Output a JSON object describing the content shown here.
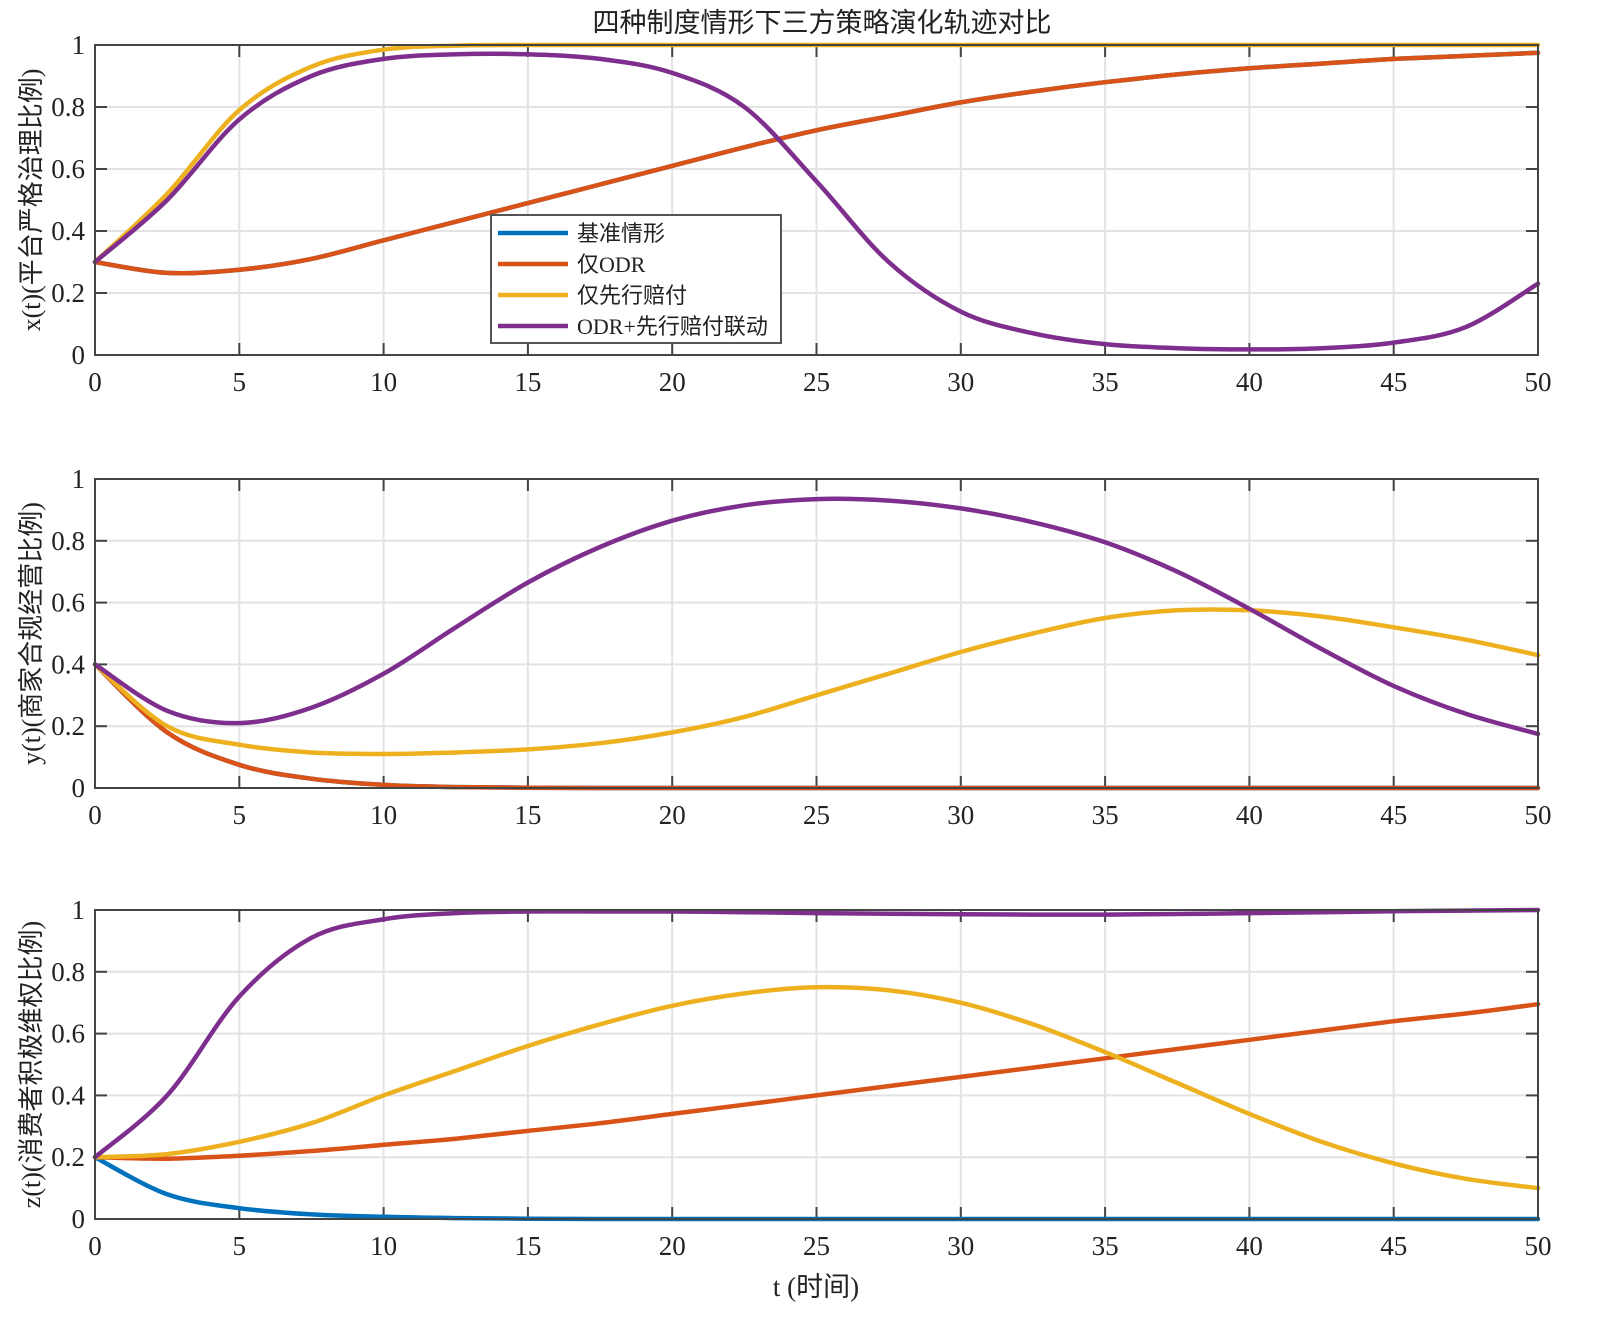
{
  "chart_data": {
    "type": "line",
    "title": "四种制度情形下三方策略演化轨迹对比",
    "xlabel": "t (时间)",
    "x": [
      0,
      2.5,
      5,
      7.5,
      10,
      12.5,
      15,
      17.5,
      20,
      22.5,
      25,
      27.5,
      30,
      32.5,
      35,
      37.5,
      40,
      42.5,
      45,
      47.5,
      50
    ],
    "xlim": [
      0,
      50
    ],
    "xticks": [
      0,
      5,
      10,
      15,
      20,
      25,
      30,
      35,
      40,
      45,
      50
    ],
    "yticks": [
      0,
      0.2,
      0.4,
      0.6,
      0.8,
      1
    ],
    "ytick_labels": [
      "0",
      "0.2",
      "0.4",
      "0.6",
      "0.8",
      "1"
    ],
    "grid": true,
    "legend": {
      "placement": "center-left of top panel",
      "entries": [
        "基准情形",
        "仅ODR",
        "仅先行赔付",
        "ODR+先行赔付联动"
      ]
    },
    "colors": [
      "#0072BD",
      "#D95319",
      "#EDB120",
      "#7E2F8E"
    ],
    "panels": [
      {
        "ylabel": "x(t)(平台严格治理比例)",
        "ylim": [
          0,
          1
        ],
        "series": [
          {
            "name": "基准情形",
            "values": [
              0.3,
              0.265,
              0.275,
              0.31,
              0.37,
              0.43,
              0.49,
              0.55,
              0.61,
              0.67,
              0.725,
              0.77,
              0.815,
              0.85,
              0.88,
              0.905,
              0.925,
              0.94,
              0.955,
              0.965,
              0.975
            ]
          },
          {
            "name": "仅ODR",
            "values": [
              0.3,
              0.265,
              0.275,
              0.31,
              0.37,
              0.43,
              0.49,
              0.55,
              0.61,
              0.67,
              0.725,
              0.77,
              0.815,
              0.85,
              0.88,
              0.905,
              0.925,
              0.94,
              0.955,
              0.965,
              0.975
            ]
          },
          {
            "name": "仅先行赔付",
            "values": [
              0.3,
              0.52,
              0.79,
              0.93,
              0.985,
              0.998,
              1,
              1,
              1,
              1,
              1,
              1,
              1,
              1,
              1,
              1,
              1,
              1,
              1,
              1,
              1
            ]
          },
          {
            "name": "ODR+先行赔付联动",
            "values": [
              0.3,
              0.5,
              0.76,
              0.9,
              0.955,
              0.97,
              0.97,
              0.955,
              0.91,
              0.8,
              0.56,
              0.3,
              0.14,
              0.07,
              0.035,
              0.022,
              0.018,
              0.022,
              0.04,
              0.09,
              0.23
            ]
          }
        ]
      },
      {
        "ylabel": "y(t)(商家合规经营比例)",
        "ylim": [
          0,
          1
        ],
        "series": [
          {
            "name": "基准情形",
            "values": [
              0.4,
              0.18,
              0.075,
              0.03,
              0.01,
              0.003,
              0.001,
              0,
              0,
              0,
              0,
              0,
              0,
              0,
              0,
              0,
              0,
              0,
              0,
              0,
              0
            ]
          },
          {
            "name": "仅ODR",
            "values": [
              0.4,
              0.18,
              0.075,
              0.03,
              0.01,
              0.003,
              0.001,
              0,
              0,
              0,
              0,
              0,
              0,
              0,
              0,
              0,
              0,
              0,
              0,
              0,
              0
            ]
          },
          {
            "name": "仅先行赔付",
            "values": [
              0.4,
              0.2,
              0.14,
              0.115,
              0.11,
              0.115,
              0.125,
              0.145,
              0.18,
              0.23,
              0.3,
              0.37,
              0.44,
              0.5,
              0.55,
              0.575,
              0.575,
              0.555,
              0.52,
              0.48,
              0.43
            ]
          },
          {
            "name": "ODR+先行赔付联动",
            "values": [
              0.4,
              0.25,
              0.21,
              0.26,
              0.37,
              0.52,
              0.665,
              0.78,
              0.865,
              0.915,
              0.935,
              0.93,
              0.905,
              0.86,
              0.795,
              0.7,
              0.58,
              0.45,
              0.33,
              0.24,
              0.175
            ]
          }
        ]
      },
      {
        "ylabel": "z(t)(消费者积极维权比例)",
        "ylim": [
          0,
          1
        ],
        "series": [
          {
            "name": "基准情形",
            "values": [
              0.2,
              0.08,
              0.035,
              0.015,
              0.007,
              0.003,
              0.001,
              0,
              0,
              0,
              0,
              0,
              0,
              0,
              0,
              0,
              0,
              0,
              0,
              0,
              0
            ]
          },
          {
            "name": "仅ODR",
            "values": [
              0.2,
              0.195,
              0.205,
              0.22,
              0.24,
              0.26,
              0.285,
              0.31,
              0.34,
              0.37,
              0.4,
              0.43,
              0.46,
              0.49,
              0.52,
              0.55,
              0.58,
              0.61,
              0.64,
              0.665,
              0.695
            ]
          },
          {
            "name": "仅先行赔付",
            "values": [
              0.2,
              0.21,
              0.25,
              0.31,
              0.4,
              0.48,
              0.56,
              0.63,
              0.69,
              0.73,
              0.75,
              0.74,
              0.7,
              0.63,
              0.54,
              0.44,
              0.34,
              0.25,
              0.18,
              0.13,
              0.1
            ]
          },
          {
            "name": "ODR+先行赔付联动",
            "values": [
              0.2,
              0.4,
              0.72,
              0.91,
              0.97,
              0.99,
              0.995,
              0.995,
              0.995,
              0.993,
              0.99,
              0.988,
              0.986,
              0.985,
              0.985,
              0.987,
              0.99,
              0.993,
              0.996,
              0.998,
              1.0
            ]
          }
        ]
      }
    ]
  }
}
